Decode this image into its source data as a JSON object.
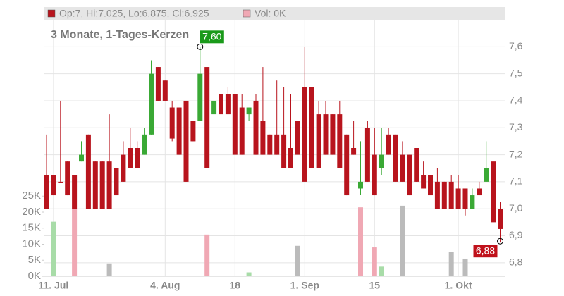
{
  "chart_data": {
    "type": "candlestick",
    "subtitle": "3 Monate, 1-Tages-Kerzen",
    "legend": {
      "price": "Op:7, Hi:7.025, Lo:6.875, Cl:6.925",
      "volume": "Vol: 0K"
    },
    "categories": [
      null,
      "11. Jul",
      null,
      null,
      null,
      null,
      null,
      null,
      null,
      null,
      null,
      null,
      null,
      null,
      null,
      null,
      null,
      "4. Aug",
      null,
      null,
      null,
      null,
      null,
      null,
      null,
      null,
      null,
      "18",
      null,
      null,
      null,
      null,
      null,
      null,
      null,
      null,
      null,
      "1. Sep",
      null,
      null,
      null,
      null,
      null,
      null,
      null,
      null,
      null,
      "15",
      null,
      null,
      null,
      null,
      null,
      null,
      null,
      null,
      null,
      null,
      null,
      "1. Okt",
      null,
      null,
      null,
      null,
      null,
      null
    ],
    "open": [
      7.125,
      7.125,
      7.1,
      7.175,
      7.125,
      7.175,
      7.275,
      7.175,
      7.175,
      7.175,
      7.15,
      7.2,
      7.225,
      7.225,
      7.2,
      7.275,
      7.525,
      7.475,
      7.375,
      7.375,
      7.4,
      7.325,
      7.325,
      7.525,
      7.35,
      7.425,
      7.425,
      7.425,
      7.375,
      7.35,
      7.4,
      7.325,
      7.275,
      7.275,
      7.275,
      7.225,
      7.325,
      7.45,
      7.45,
      7.35,
      7.35,
      7.35,
      7.35,
      7.275,
      7.225,
      7.075,
      7.3,
      7.2,
      7.15,
      7.275,
      7.275,
      7.2,
      7.2,
      7.225,
      7.125,
      7.125,
      7.1,
      7.1,
      7.1,
      7.075,
      7.075,
      7.0,
      7.075,
      7.1,
      7.175,
      7.0
    ],
    "high": [
      7.275,
      7.125,
      7.4,
      7.175,
      7.125,
      7.25,
      7.275,
      7.175,
      7.175,
      7.35,
      7.15,
      7.25,
      7.3,
      7.25,
      7.3,
      7.55,
      7.525,
      7.475,
      7.4,
      7.375,
      7.4,
      7.325,
      7.6,
      7.525,
      7.4,
      7.425,
      7.45,
      7.425,
      7.425,
      7.375,
      7.425,
      7.525,
      7.275,
      7.475,
      7.45,
      7.425,
      7.325,
      7.6,
      7.45,
      7.4,
      7.4,
      7.35,
      7.4,
      7.275,
      7.325,
      7.25,
      7.325,
      7.3,
      7.3,
      7.3,
      7.275,
      7.25,
      7.2,
      7.225,
      7.175,
      7.125,
      7.15,
      7.1,
      7.125,
      7.125,
      7.075,
      7.075,
      7.1,
      7.25,
      7.175,
      7.025
    ],
    "low": [
      7.0,
      7.05,
      7.1,
      7.05,
      7.0,
      7.175,
      7.0,
      7.0,
      7.0,
      7.0,
      7.05,
      7.1,
      7.15,
      7.15,
      7.2,
      7.275,
      7.4,
      7.4,
      7.25,
      7.2,
      7.1,
      7.25,
      7.325,
      7.15,
      7.35,
      7.35,
      7.35,
      7.2,
      7.2,
      7.325,
      7.2,
      7.2,
      7.2,
      7.2,
      7.15,
      7.15,
      7.2,
      7.1,
      7.15,
      7.15,
      7.2,
      7.2,
      7.15,
      7.05,
      7.2,
      7.05,
      7.1,
      7.05,
      7.125,
      7.2,
      7.1,
      7.1,
      7.05,
      7.1,
      7.075,
      7.05,
      7.0,
      7.0,
      7.0,
      7.0,
      6.975,
      7.0,
      7.05,
      7.1,
      6.95,
      6.875
    ],
    "close": [
      7.0,
      7.05,
      7.1,
      7.05,
      7.0,
      7.2,
      7.0,
      7.0,
      7.0,
      7.0,
      7.05,
      7.1,
      7.15,
      7.15,
      7.275,
      7.5,
      7.4,
      7.4,
      7.26,
      7.2,
      7.1,
      7.25,
      7.5,
      7.15,
      7.4,
      7.35,
      7.35,
      7.2,
      7.2,
      7.375,
      7.2,
      7.2,
      7.2,
      7.2,
      7.15,
      7.15,
      7.2,
      7.1,
      7.15,
      7.15,
      7.2,
      7.2,
      7.15,
      7.05,
      7.2,
      7.1,
      7.1,
      7.05,
      7.2,
      7.2,
      7.1,
      7.1,
      7.05,
      7.1,
      7.075,
      7.05,
      7.0,
      7.0,
      7.0,
      7.0,
      7.0,
      7.05,
      7.05,
      7.15,
      6.95,
      6.925
    ],
    "up_color": "#3aa935",
    "down_color": "#b8141d",
    "ylim": [
      6.75,
      7.7
    ],
    "yticks": [
      {
        "value": 6.8,
        "label": "6,8"
      },
      {
        "value": 6.9,
        "label": "6,9"
      },
      {
        "value": 7.0,
        "label": "7,0"
      },
      {
        "value": 7.1,
        "label": "7,1"
      },
      {
        "value": 7.2,
        "label": "7,2"
      },
      {
        "value": 7.3,
        "label": "7,3"
      },
      {
        "value": 7.4,
        "label": "7,4"
      },
      {
        "value": 7.5,
        "label": "7,5"
      },
      {
        "value": 7.6,
        "label": "7,6"
      }
    ],
    "volume": {
      "values": [
        null,
        17,
        null,
        null,
        21,
        null,
        null,
        null,
        null,
        4,
        null,
        null,
        null,
        null,
        null,
        null,
        null,
        null,
        null,
        null,
        null,
        null,
        null,
        13,
        null,
        null,
        null,
        null,
        null,
        1.2,
        null,
        null,
        null,
        null,
        null,
        null,
        9.5,
        null,
        null,
        null,
        null,
        null,
        null,
        null,
        null,
        21.5,
        null,
        9,
        3,
        null,
        null,
        22,
        null,
        null,
        null,
        null,
        null,
        null,
        7.5,
        null,
        5.5,
        null,
        null,
        null,
        null,
        null
      ],
      "colors": [
        null,
        "#a8dca8",
        null,
        null,
        "#f0a8b4",
        null,
        null,
        null,
        null,
        "#bbbbbb",
        null,
        null,
        null,
        null,
        null,
        null,
        null,
        null,
        null,
        null,
        null,
        null,
        null,
        "#f0a8b4",
        null,
        null,
        null,
        null,
        null,
        "#a8dca8",
        null,
        null,
        null,
        null,
        null,
        null,
        "#bbbbbb",
        null,
        null,
        null,
        null,
        null,
        null,
        null,
        null,
        "#f0a8b4",
        null,
        "#f0a8b4",
        "#a8dca8",
        null,
        null,
        "#bbbbbb",
        null,
        null,
        null,
        null,
        null,
        null,
        "#bbbbbb",
        null,
        "#bbbbbb",
        null,
        null,
        null,
        null,
        null
      ],
      "ylim": [
        0,
        80
      ],
      "yticks": [
        {
          "value": 0,
          "label": "0K"
        },
        {
          "value": 5,
          "label": "5K"
        },
        {
          "value": 10,
          "label": "10K"
        },
        {
          "value": 15,
          "label": "15K"
        },
        {
          "value": 20,
          "label": "20K"
        },
        {
          "value": 25,
          "label": "25K"
        }
      ]
    },
    "annotations": {
      "max": {
        "value": 7.6,
        "label": "7,60",
        "color": "#1a9a1a"
      },
      "min": {
        "value": 6.88,
        "label": "6,88",
        "color": "#c0111b"
      }
    },
    "grid": true
  }
}
